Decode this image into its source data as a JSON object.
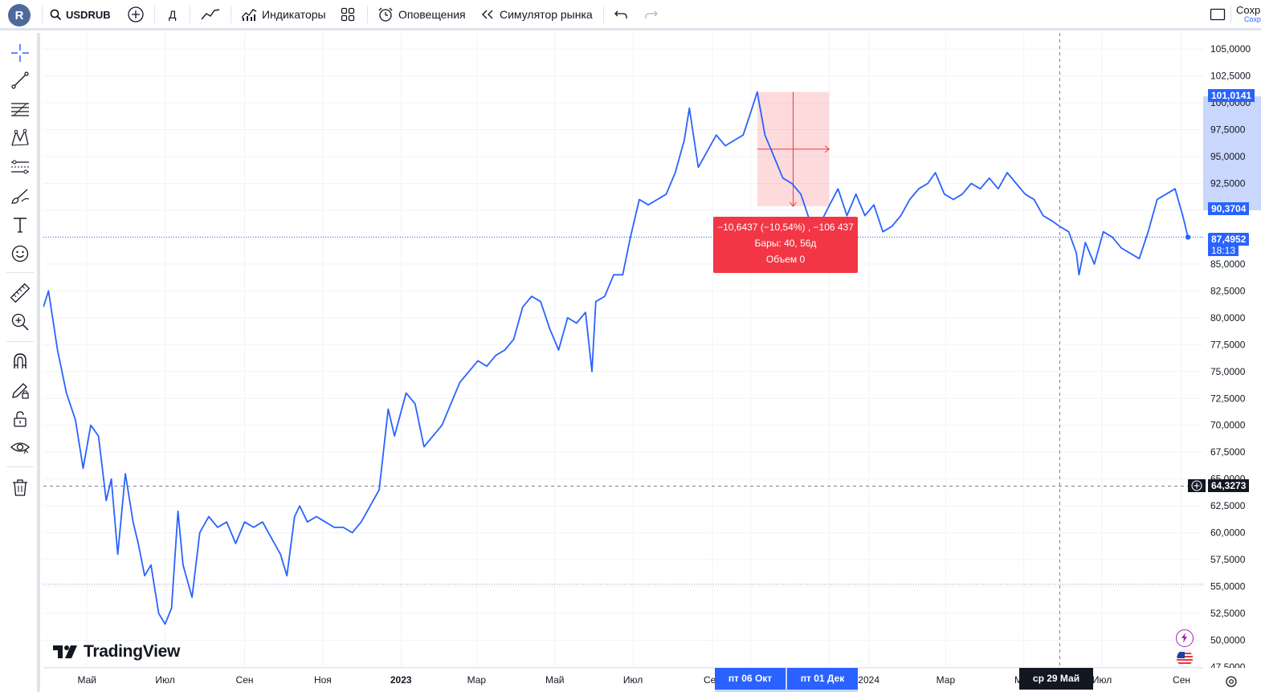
{
  "header": {
    "avatar_letter": "R",
    "symbol": "USDRUB",
    "interval": "Д",
    "indicators_label": "Индикаторы",
    "alerts_label": "Оповещения",
    "replay_label": "Симулятор рынка",
    "save_label": "Сохр",
    "save_sub": "Сохр"
  },
  "left_toolbar": {
    "tools": [
      "crosshair-icon",
      "trend-line-icon",
      "fib-retracement-icon",
      "pattern-icon",
      "prediction-icon",
      "brush-icon",
      "text-icon",
      "emoji-icon",
      "ruler-icon",
      "zoom-in-icon",
      "magnet-icon",
      "lock-drawing-icon",
      "unlock-icon",
      "eye-icon",
      "trash-icon"
    ]
  },
  "chart": {
    "brand": "TradingView",
    "line_color": "#2962ff",
    "price_axis_labels": [
      "105,0000",
      "102,5000",
      "100,0000",
      "97,5000",
      "95,0000",
      "92,5000",
      "90,0000",
      "87,5000",
      "85,0000",
      "82,5000",
      "80,0000",
      "77,5000",
      "75,0000",
      "72,5000",
      "70,0000",
      "67,5000",
      "65,0000",
      "62,5000",
      "60,0000",
      "57,5000",
      "55,0000",
      "52,5000",
      "50,0000",
      "47,5000"
    ],
    "time_axis_labels": [
      "Май",
      "Июл",
      "Сен",
      "Ноя",
      "2023",
      "Мар",
      "Май",
      "Июл",
      "Сен",
      "Окт",
      "Дек",
      "2024",
      "Мар",
      "Май",
      "Июл",
      "Сен"
    ],
    "measure": {
      "line1": "−10,6437 (−10,54%) , −106 437",
      "line2": "Бары: 40, 56д",
      "line3": "Объем 0"
    },
    "price_labels": {
      "high": "101,0141",
      "measure_low": "90,3704",
      "current": "87,4952",
      "countdown": "18:13",
      "crosshair": "64,3273"
    },
    "date_labels": {
      "start": "пт 06 Окт '23",
      "end": "пт 01 Дек '23",
      "crosshair": "ср 29 Май '24"
    }
  },
  "chart_data": {
    "type": "line",
    "title": "",
    "xlabel": "",
    "ylabel": "",
    "ylim": [
      47.5,
      106.5
    ],
    "x_range": [
      "2022-03-28",
      "2024-09-06"
    ],
    "series": [
      {
        "name": "",
        "points": [
          [
            "2022-03-28",
            81
          ],
          [
            "2022-04-01",
            82.5
          ],
          [
            "2022-04-08",
            77
          ],
          [
            "2022-04-15",
            73
          ],
          [
            "2022-04-22",
            70.5
          ],
          [
            "2022-04-28",
            66
          ],
          [
            "2022-05-04",
            70
          ],
          [
            "2022-05-10",
            69
          ],
          [
            "2022-05-16",
            63
          ],
          [
            "2022-05-20",
            65
          ],
          [
            "2022-05-25",
            58
          ],
          [
            "2022-05-31",
            65.5
          ],
          [
            "2022-06-06",
            61
          ],
          [
            "2022-06-10",
            59
          ],
          [
            "2022-06-15",
            56
          ],
          [
            "2022-06-20",
            57
          ],
          [
            "2022-06-26",
            52.5
          ],
          [
            "2022-07-01",
            51.5
          ],
          [
            "2022-07-06",
            53
          ],
          [
            "2022-07-11",
            62
          ],
          [
            "2022-07-15",
            57
          ],
          [
            "2022-07-22",
            54
          ],
          [
            "2022-07-28",
            60
          ],
          [
            "2022-08-04",
            61.5
          ],
          [
            "2022-08-11",
            60.5
          ],
          [
            "2022-08-18",
            61
          ],
          [
            "2022-08-25",
            59
          ],
          [
            "2022-09-01",
            61
          ],
          [
            "2022-09-08",
            60.5
          ],
          [
            "2022-09-15",
            61
          ],
          [
            "2022-09-22",
            59.5
          ],
          [
            "2022-09-29",
            58
          ],
          [
            "2022-10-04",
            56
          ],
          [
            "2022-10-10",
            61.5
          ],
          [
            "2022-10-14",
            62.5
          ],
          [
            "2022-10-20",
            61
          ],
          [
            "2022-10-27",
            61.5
          ],
          [
            "2022-11-03",
            61
          ],
          [
            "2022-11-10",
            60.5
          ],
          [
            "2022-11-17",
            60.5
          ],
          [
            "2022-11-24",
            60
          ],
          [
            "2022-12-01",
            61
          ],
          [
            "2022-12-08",
            62.5
          ],
          [
            "2022-12-15",
            64
          ],
          [
            "2022-12-22",
            71.5
          ],
          [
            "2022-12-27",
            69
          ],
          [
            "2023-01-05",
            73
          ],
          [
            "2023-01-12",
            72
          ],
          [
            "2023-01-19",
            68
          ],
          [
            "2023-01-26",
            69
          ],
          [
            "2023-02-02",
            70
          ],
          [
            "2023-02-09",
            72
          ],
          [
            "2023-02-16",
            74
          ],
          [
            "2023-02-23",
            75
          ],
          [
            "2023-03-02",
            76
          ],
          [
            "2023-03-09",
            75.5
          ],
          [
            "2023-03-16",
            76.5
          ],
          [
            "2023-03-23",
            77
          ],
          [
            "2023-03-30",
            78
          ],
          [
            "2023-04-06",
            81
          ],
          [
            "2023-04-13",
            82
          ],
          [
            "2023-04-20",
            81.5
          ],
          [
            "2023-04-27",
            79
          ],
          [
            "2023-05-04",
            77
          ],
          [
            "2023-05-11",
            80
          ],
          [
            "2023-05-18",
            79.5
          ],
          [
            "2023-05-25",
            80.5
          ],
          [
            "2023-05-30",
            75
          ],
          [
            "2023-06-02",
            81.5
          ],
          [
            "2023-06-09",
            82
          ],
          [
            "2023-06-16",
            84
          ],
          [
            "2023-06-23",
            84
          ],
          [
            "2023-06-29",
            87.5
          ],
          [
            "2023-07-06",
            91
          ],
          [
            "2023-07-13",
            90.5
          ],
          [
            "2023-07-20",
            91
          ],
          [
            "2023-07-27",
            91.5
          ],
          [
            "2023-08-03",
            93.5
          ],
          [
            "2023-08-10",
            96.5
          ],
          [
            "2023-08-14",
            99.5
          ],
          [
            "2023-08-21",
            94
          ],
          [
            "2023-08-28",
            95.5
          ],
          [
            "2023-09-04",
            97
          ],
          [
            "2023-09-11",
            96
          ],
          [
            "2023-09-18",
            96.5
          ],
          [
            "2023-09-25",
            97
          ],
          [
            "2023-10-02",
            99.5
          ],
          [
            "2023-10-06",
            101
          ],
          [
            "2023-10-12",
            97
          ],
          [
            "2023-10-19",
            95
          ],
          [
            "2023-10-26",
            93
          ],
          [
            "2023-11-02",
            92.5
          ],
          [
            "2023-11-09",
            91.5
          ],
          [
            "2023-11-16",
            89
          ],
          [
            "2023-11-23",
            88.5
          ],
          [
            "2023-12-01",
            90.4
          ],
          [
            "2023-12-08",
            92
          ],
          [
            "2023-12-15",
            89.5
          ],
          [
            "2023-12-22",
            91.5
          ],
          [
            "2023-12-29",
            89.5
          ],
          [
            "2024-01-05",
            90.5
          ],
          [
            "2024-01-12",
            88
          ],
          [
            "2024-01-19",
            88.5
          ],
          [
            "2024-01-26",
            89.5
          ],
          [
            "2024-02-02",
            91
          ],
          [
            "2024-02-09",
            92
          ],
          [
            "2024-02-16",
            92.5
          ],
          [
            "2024-02-22",
            93.5
          ],
          [
            "2024-02-29",
            91.5
          ],
          [
            "2024-03-07",
            91
          ],
          [
            "2024-03-14",
            91.5
          ],
          [
            "2024-03-21",
            92.5
          ],
          [
            "2024-03-28",
            92
          ],
          [
            "2024-04-04",
            93
          ],
          [
            "2024-04-11",
            92
          ],
          [
            "2024-04-18",
            93.5
          ],
          [
            "2024-04-25",
            92.5
          ],
          [
            "2024-05-02",
            91.5
          ],
          [
            "2024-05-09",
            91
          ],
          [
            "2024-05-16",
            89.5
          ],
          [
            "2024-05-23",
            89
          ],
          [
            "2024-05-29",
            88.5
          ],
          [
            "2024-06-05",
            88
          ],
          [
            "2024-06-11",
            86
          ],
          [
            "2024-06-13",
            84
          ],
          [
            "2024-06-18",
            87
          ],
          [
            "2024-06-25",
            85
          ],
          [
            "2024-07-02",
            88
          ],
          [
            "2024-07-09",
            87.5
          ],
          [
            "2024-07-16",
            86.5
          ],
          [
            "2024-07-23",
            86
          ],
          [
            "2024-07-30",
            85.5
          ],
          [
            "2024-08-06",
            88
          ],
          [
            "2024-08-13",
            91
          ],
          [
            "2024-08-20",
            91.5
          ],
          [
            "2024-08-27",
            92
          ],
          [
            "2024-09-02",
            89.5
          ],
          [
            "2024-09-06",
            87.5
          ]
        ]
      }
    ]
  }
}
